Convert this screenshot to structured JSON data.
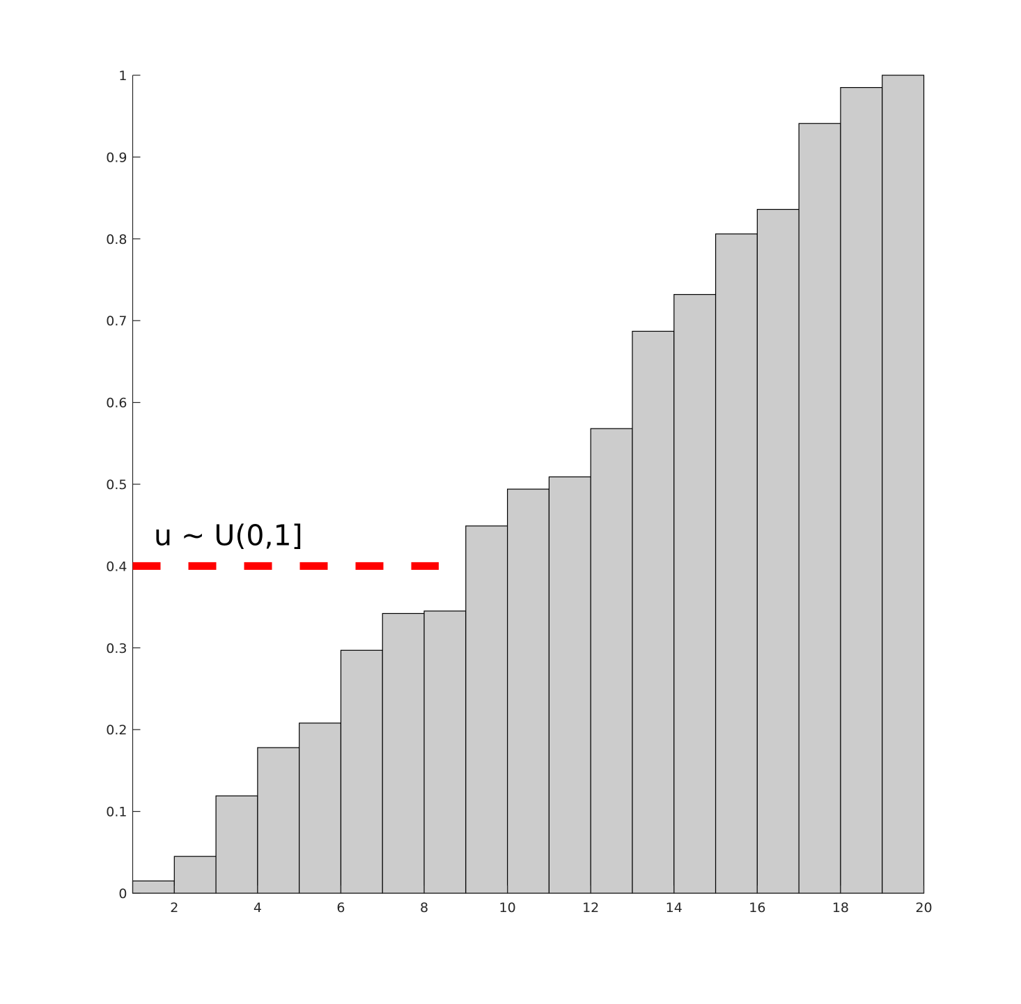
{
  "chart_data": {
    "type": "bar",
    "categories": [
      1,
      2,
      3,
      4,
      5,
      6,
      7,
      8,
      9,
      10,
      11,
      12,
      13,
      14,
      15,
      16,
      17,
      18,
      19,
      20
    ],
    "values": [
      0.015,
      0.045,
      0.119,
      0.178,
      0.208,
      0.297,
      0.342,
      0.345,
      0.449,
      0.494,
      0.509,
      0.568,
      0.687,
      0.732,
      0.806,
      0.836,
      0.941,
      0.985,
      1.0,
      1.0
    ],
    "xlim": [
      1,
      20
    ],
    "ylim": [
      0,
      1
    ],
    "xticks": [
      2,
      4,
      6,
      8,
      10,
      12,
      14,
      16,
      18,
      20
    ],
    "yticks": [
      0,
      0.1,
      0.2,
      0.3,
      0.4,
      0.5,
      0.6,
      0.7,
      0.8,
      0.9,
      1
    ],
    "bar_color": "#cccccc",
    "bar_edge_color": "#000000",
    "grid": false,
    "title": "",
    "xlabel": "",
    "ylabel": "",
    "threshold": {
      "y": 0.4,
      "x_range": [
        1,
        8.35
      ],
      "color": "#ff0000",
      "style": "dashed",
      "label": "u ~ U(0,1]"
    }
  }
}
